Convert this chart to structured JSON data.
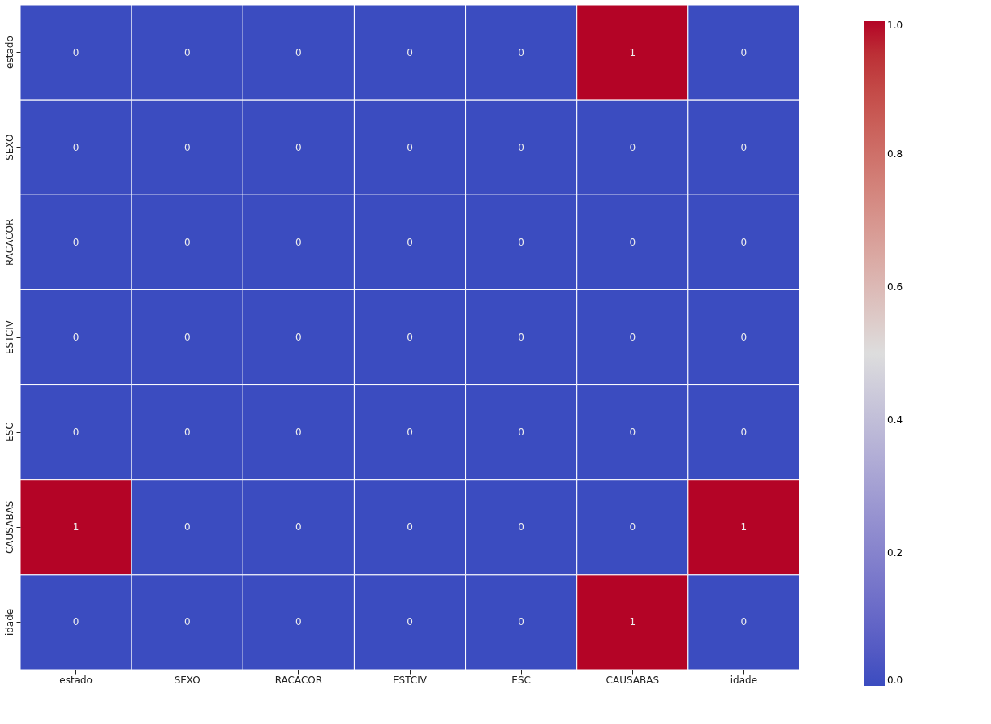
{
  "chart_data": {
    "type": "heatmap",
    "categories": [
      "estado",
      "SEXO",
      "RACACOR",
      "ESTCIV",
      "ESC",
      "CAUSABAS",
      "idade"
    ],
    "y_categories": [
      "estado",
      "SEXO",
      "RACACOR",
      "ESTCIV",
      "ESC",
      "CAUSABAS",
      "idade"
    ],
    "cells": [
      [
        0,
        0,
        0,
        0,
        0,
        1,
        0
      ],
      [
        0,
        0,
        0,
        0,
        0,
        0,
        0
      ],
      [
        0,
        0,
        0,
        0,
        0,
        0,
        0
      ],
      [
        0,
        0,
        0,
        0,
        0,
        0,
        0
      ],
      [
        0,
        0,
        0,
        0,
        0,
        0,
        0
      ],
      [
        1,
        0,
        0,
        0,
        0,
        0,
        1
      ],
      [
        0,
        0,
        0,
        0,
        0,
        1,
        0
      ]
    ],
    "clim": [
      0.0,
      1.0
    ],
    "cticks": [
      {
        "value": 0.0,
        "label": "0.0"
      },
      {
        "value": 0.2,
        "label": "0.2"
      },
      {
        "value": 0.4,
        "label": "0.4"
      },
      {
        "value": 0.6,
        "label": "0.6"
      },
      {
        "value": 0.8,
        "label": "0.8"
      },
      {
        "value": 1.0,
        "label": "1.0"
      }
    ],
    "data_labels": true
  }
}
